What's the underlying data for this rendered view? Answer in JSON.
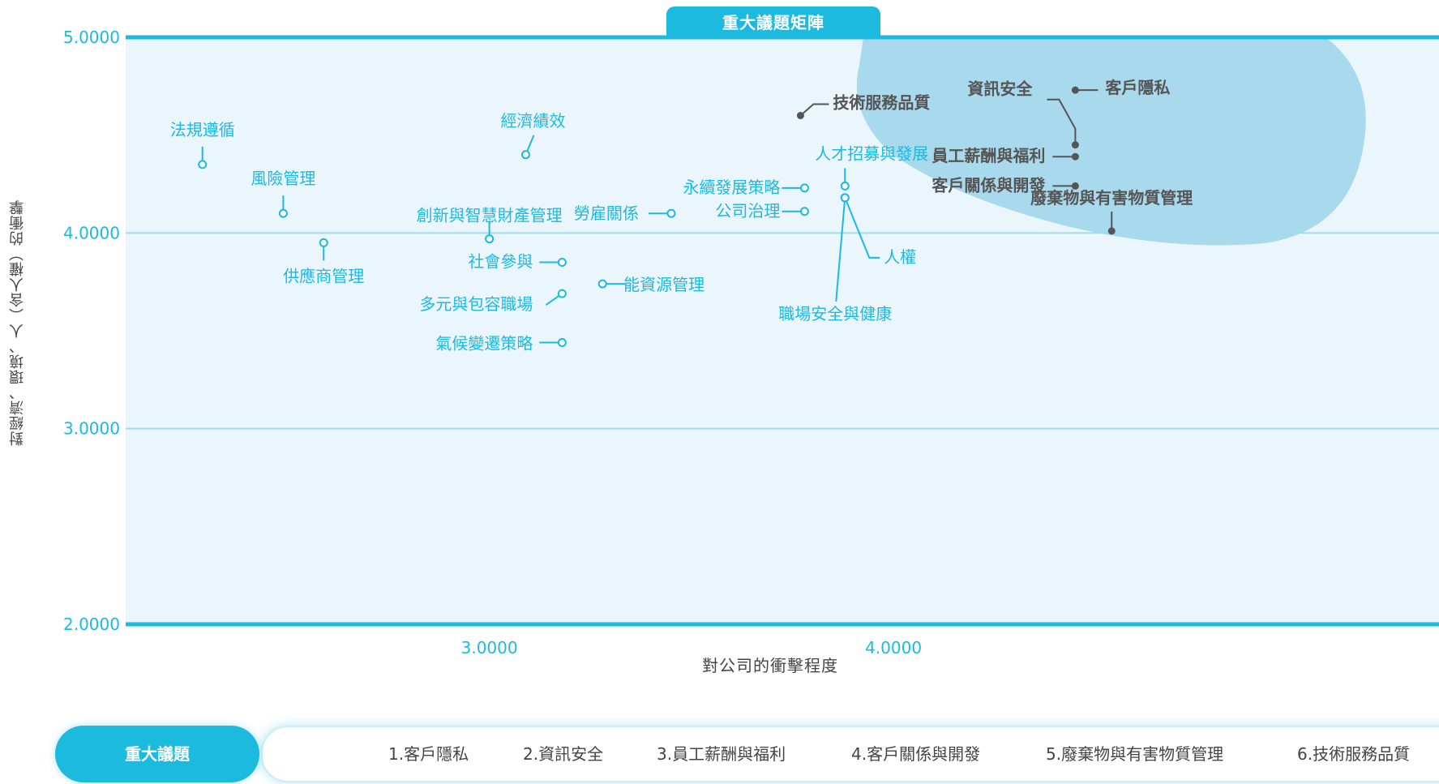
{
  "chart_data": {
    "type": "scatter",
    "title": "重大議題矩陣",
    "xlabel": "對公司的衝擊程度",
    "ylabel": "對經濟、環境、人（含人權）的衝擊",
    "xlim": [
      2.1,
      5.35
    ],
    "ylim": [
      2.0,
      5.0
    ],
    "x_ticks": [
      3.0,
      4.0
    ],
    "x_tick_labels": [
      "3.0000",
      "4.0000"
    ],
    "y_ticks": [
      2.0,
      3.0,
      4.0,
      5.0
    ],
    "y_tick_labels": [
      "2.0000",
      "3.0000",
      "4.0000",
      "5.0000"
    ],
    "grid": "horizontal",
    "highlight_region": "top-right",
    "colors": {
      "material": "#555555",
      "other": "#1cbadf",
      "highlight": "#7cc7e2",
      "plot_bg": "#eaf6fc"
    },
    "points": [
      {
        "label": "客戶隱私",
        "x": 4.45,
        "y": 4.73,
        "material": true
      },
      {
        "label": "資訊安全",
        "x": 4.45,
        "y": 4.45,
        "material": true
      },
      {
        "label": "員工薪酬與福利",
        "x": 4.45,
        "y": 4.39,
        "material": true
      },
      {
        "label": "客戶關係與開發",
        "x": 4.45,
        "y": 4.24,
        "material": true
      },
      {
        "label": "廢棄物與有害物質管理",
        "x": 4.54,
        "y": 4.01,
        "material": true
      },
      {
        "label": "技術服務品質",
        "x": 3.77,
        "y": 4.6,
        "material": true
      },
      {
        "label": "人才招募與發展",
        "x": 3.88,
        "y": 4.24,
        "material": false
      },
      {
        "label": "人權",
        "x": 3.88,
        "y": 4.18,
        "material": false
      },
      {
        "label": "職場安全與健康",
        "x": 3.88,
        "y": 4.18,
        "material": false
      },
      {
        "label": "永續發展策略",
        "x": 3.78,
        "y": 4.23,
        "material": false
      },
      {
        "label": "公司治理",
        "x": 3.78,
        "y": 4.11,
        "material": false
      },
      {
        "label": "勞雇關係",
        "x": 3.45,
        "y": 4.1,
        "material": false
      },
      {
        "label": "能資源管理",
        "x": 3.28,
        "y": 3.74,
        "material": false
      },
      {
        "label": "經濟績效",
        "x": 3.09,
        "y": 4.4,
        "material": false
      },
      {
        "label": "創新與智慧財產管理",
        "x": 3.0,
        "y": 3.97,
        "material": false
      },
      {
        "label": "社會參與",
        "x": 3.18,
        "y": 3.85,
        "material": false
      },
      {
        "label": "多元與包容職場",
        "x": 3.18,
        "y": 3.69,
        "material": false
      },
      {
        "label": "氣候變遷策略",
        "x": 3.18,
        "y": 3.44,
        "material": false
      },
      {
        "label": "法規遵循",
        "x": 2.29,
        "y": 4.35,
        "material": false
      },
      {
        "label": "風險管理",
        "x": 2.49,
        "y": 4.1,
        "material": false
      },
      {
        "label": "供應商管理",
        "x": 2.59,
        "y": 3.95,
        "material": false
      }
    ]
  },
  "legend": {
    "title": "重大議題",
    "items": [
      "1.客戶隱私",
      "2.資訊安全",
      "3.員工薪酬與福利",
      "4.客戶關係與開發",
      "5.廢棄物與有害物質管理",
      "6.技術服務品質"
    ]
  }
}
